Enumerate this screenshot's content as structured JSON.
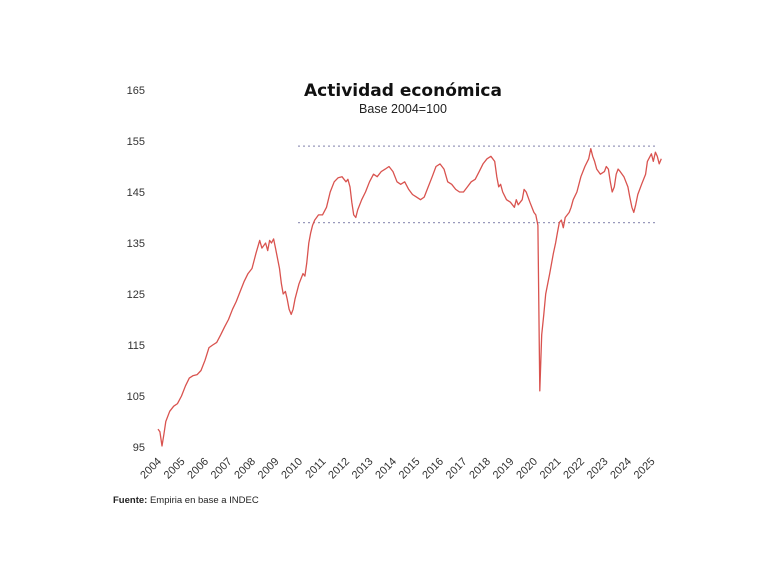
{
  "chart_data": {
    "type": "line",
    "title": "Actividad económica",
    "subtitle": "Base 2004=100",
    "xlabel": "",
    "ylabel": "",
    "x_start_year": 2004,
    "x_end_year": 2025.45,
    "ylim": [
      95,
      165
    ],
    "yticks": [
      95,
      105,
      115,
      125,
      135,
      145,
      155,
      165
    ],
    "xticks": [
      "2004",
      "2005",
      "2006",
      "2007",
      "2008",
      "2009",
      "2010",
      "2011",
      "2012",
      "2013",
      "2014",
      "2015",
      "2016",
      "2017",
      "2018",
      "2019",
      "2020",
      "2021",
      "2022",
      "2023",
      "2024",
      "2025"
    ],
    "reference_lines": [
      154.0,
      139.0
    ],
    "grid": false,
    "legend": "none",
    "colors": {
      "line": "#d9534f",
      "reference": "#9999bb"
    },
    "series": [
      {
        "name": "",
        "points": [
          [
            2004.0,
            98.5
          ],
          [
            2004.08,
            98.0
          ],
          [
            2004.17,
            95.2
          ],
          [
            2004.25,
            97.5
          ],
          [
            2004.33,
            100.0
          ],
          [
            2004.5,
            102.0
          ],
          [
            2004.67,
            103.0
          ],
          [
            2004.83,
            103.5
          ],
          [
            2005.0,
            105.0
          ],
          [
            2005.17,
            107.0
          ],
          [
            2005.33,
            108.5
          ],
          [
            2005.5,
            109.0
          ],
          [
            2005.67,
            109.2
          ],
          [
            2005.83,
            110.0
          ],
          [
            2006.0,
            112.0
          ],
          [
            2006.17,
            114.5
          ],
          [
            2006.33,
            115.0
          ],
          [
            2006.5,
            115.5
          ],
          [
            2006.67,
            117.0
          ],
          [
            2006.83,
            118.5
          ],
          [
            2007.0,
            120.0
          ],
          [
            2007.17,
            122.0
          ],
          [
            2007.33,
            123.5
          ],
          [
            2007.5,
            125.5
          ],
          [
            2007.67,
            127.5
          ],
          [
            2007.83,
            129.0
          ],
          [
            2008.0,
            130.0
          ],
          [
            2008.17,
            133.0
          ],
          [
            2008.33,
            135.5
          ],
          [
            2008.42,
            134.0
          ],
          [
            2008.5,
            134.5
          ],
          [
            2008.58,
            135.0
          ],
          [
            2008.67,
            133.5
          ],
          [
            2008.75,
            135.5
          ],
          [
            2008.83,
            135.0
          ],
          [
            2008.92,
            135.8
          ],
          [
            2009.0,
            134.0
          ],
          [
            2009.17,
            130.0
          ],
          [
            2009.25,
            127.0
          ],
          [
            2009.33,
            125.0
          ],
          [
            2009.42,
            125.5
          ],
          [
            2009.5,
            124.0
          ],
          [
            2009.58,
            122.0
          ],
          [
            2009.67,
            121.0
          ],
          [
            2009.75,
            122.0
          ],
          [
            2009.83,
            124.0
          ],
          [
            2010.0,
            127.0
          ],
          [
            2010.17,
            129.0
          ],
          [
            2010.25,
            128.5
          ],
          [
            2010.33,
            131.0
          ],
          [
            2010.42,
            135.0
          ],
          [
            2010.5,
            137.0
          ],
          [
            2010.58,
            138.5
          ],
          [
            2010.67,
            139.5
          ],
          [
            2010.83,
            140.5
          ],
          [
            2011.0,
            140.5
          ],
          [
            2011.17,
            142.0
          ],
          [
            2011.33,
            145.0
          ],
          [
            2011.5,
            147.0
          ],
          [
            2011.67,
            147.8
          ],
          [
            2011.83,
            148.0
          ],
          [
            2012.0,
            147.0
          ],
          [
            2012.08,
            147.5
          ],
          [
            2012.17,
            146.0
          ],
          [
            2012.25,
            143.0
          ],
          [
            2012.33,
            140.5
          ],
          [
            2012.42,
            140.0
          ],
          [
            2012.5,
            141.5
          ],
          [
            2012.67,
            143.5
          ],
          [
            2012.83,
            145.0
          ],
          [
            2013.0,
            147.0
          ],
          [
            2013.17,
            148.5
          ],
          [
            2013.33,
            148.0
          ],
          [
            2013.5,
            149.0
          ],
          [
            2013.67,
            149.5
          ],
          [
            2013.83,
            150.0
          ],
          [
            2014.0,
            149.0
          ],
          [
            2014.17,
            147.0
          ],
          [
            2014.33,
            146.5
          ],
          [
            2014.5,
            147.0
          ],
          [
            2014.67,
            145.5
          ],
          [
            2014.83,
            144.5
          ],
          [
            2015.0,
            144.0
          ],
          [
            2015.17,
            143.5
          ],
          [
            2015.33,
            144.0
          ],
          [
            2015.5,
            146.0
          ],
          [
            2015.67,
            148.0
          ],
          [
            2015.83,
            150.0
          ],
          [
            2016.0,
            150.5
          ],
          [
            2016.17,
            149.5
          ],
          [
            2016.33,
            147.0
          ],
          [
            2016.5,
            146.5
          ],
          [
            2016.67,
            145.5
          ],
          [
            2016.83,
            145.0
          ],
          [
            2017.0,
            145.0
          ],
          [
            2017.17,
            146.0
          ],
          [
            2017.33,
            147.0
          ],
          [
            2017.5,
            147.5
          ],
          [
            2017.67,
            149.0
          ],
          [
            2017.83,
            150.5
          ],
          [
            2018.0,
            151.5
          ],
          [
            2018.17,
            152.0
          ],
          [
            2018.33,
            151.0
          ],
          [
            2018.42,
            148.0
          ],
          [
            2018.5,
            146.0
          ],
          [
            2018.58,
            146.5
          ],
          [
            2018.67,
            145.0
          ],
          [
            2018.83,
            143.5
          ],
          [
            2019.0,
            143.0
          ],
          [
            2019.17,
            142.0
          ],
          [
            2019.25,
            143.5
          ],
          [
            2019.33,
            142.5
          ],
          [
            2019.5,
            143.5
          ],
          [
            2019.58,
            145.5
          ],
          [
            2019.67,
            145.0
          ],
          [
            2019.83,
            143.0
          ],
          [
            2020.0,
            141.0
          ],
          [
            2020.08,
            140.5
          ],
          [
            2020.17,
            138.5
          ],
          [
            2020.25,
            106.0
          ],
          [
            2020.33,
            117.0
          ],
          [
            2020.42,
            121.0
          ],
          [
            2020.5,
            125.0
          ],
          [
            2020.67,
            129.0
          ],
          [
            2020.83,
            133.0
          ],
          [
            2020.92,
            135.0
          ],
          [
            2021.0,
            137.0
          ],
          [
            2021.08,
            139.0
          ],
          [
            2021.17,
            139.5
          ],
          [
            2021.25,
            138.0
          ],
          [
            2021.33,
            140.0
          ],
          [
            2021.5,
            141.0
          ],
          [
            2021.58,
            142.0
          ],
          [
            2021.67,
            143.5
          ],
          [
            2021.83,
            145.0
          ],
          [
            2022.0,
            148.0
          ],
          [
            2022.17,
            150.0
          ],
          [
            2022.33,
            151.5
          ],
          [
            2022.42,
            153.5
          ],
          [
            2022.5,
            152.0
          ],
          [
            2022.58,
            151.0
          ],
          [
            2022.67,
            149.5
          ],
          [
            2022.83,
            148.5
          ],
          [
            2023.0,
            149.0
          ],
          [
            2023.08,
            150.0
          ],
          [
            2023.17,
            149.5
          ],
          [
            2023.25,
            147.0
          ],
          [
            2023.33,
            145.0
          ],
          [
            2023.42,
            146.0
          ],
          [
            2023.5,
            148.5
          ],
          [
            2023.58,
            149.5
          ],
          [
            2023.67,
            149.0
          ],
          [
            2023.83,
            148.0
          ],
          [
            2024.0,
            146.0
          ],
          [
            2024.08,
            144.0
          ],
          [
            2024.17,
            142.0
          ],
          [
            2024.25,
            141.0
          ],
          [
            2024.33,
            142.5
          ],
          [
            2024.42,
            144.5
          ],
          [
            2024.58,
            146.5
          ],
          [
            2024.75,
            148.5
          ],
          [
            2024.83,
            151.0
          ],
          [
            2025.0,
            152.5
          ],
          [
            2025.08,
            151.0
          ],
          [
            2025.17,
            152.8
          ],
          [
            2025.25,
            152.0
          ],
          [
            2025.33,
            150.5
          ],
          [
            2025.42,
            151.5
          ]
        ]
      }
    ]
  },
  "footer": {
    "source_label": "Fuente:",
    "source_text": " Empiria en base a INDEC"
  }
}
